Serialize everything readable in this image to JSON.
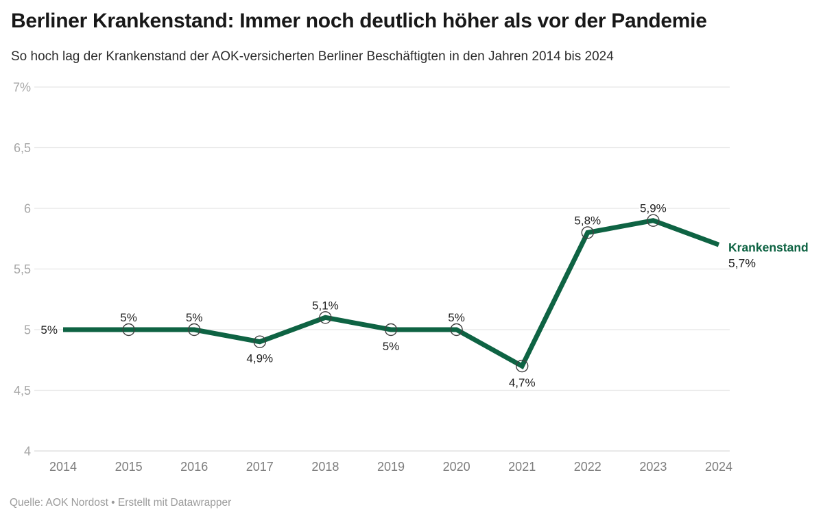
{
  "header": {
    "title": "Berliner Krankenstand: Immer noch deutlich höher als vor der Pandemie",
    "subtitle": "So hoch lag der Krankenstand der AOK-versicherten Berliner Beschäftigten in den Jahren 2014 bis 2024"
  },
  "chart_data": {
    "type": "line",
    "title": "Berliner Krankenstand: Immer noch deutlich höher als vor der Pandemie",
    "subtitle": "So hoch lag der Krankenstand der AOK-versicherten Berliner Beschäftigten in den Jahren 2014 bis 2024",
    "x": [
      "2014",
      "2015",
      "2016",
      "2017",
      "2018",
      "2019",
      "2020",
      "2021",
      "2022",
      "2023",
      "2024"
    ],
    "series": [
      {
        "name": "Krankenstand",
        "values": [
          5,
          5,
          5,
          4.9,
          5.1,
          5,
          5,
          4.7,
          5.8,
          5.9,
          5.7
        ]
      }
    ],
    "point_labels": [
      "5%",
      "5%",
      "5%",
      "4,9%",
      "5,1%",
      "5%",
      "5%",
      "4,7%",
      "5,8%",
      "5,9%",
      "5,7%"
    ],
    "label_positions": [
      "left",
      "above",
      "above",
      "below",
      "above",
      "below",
      "above",
      "below",
      "above",
      "above",
      "legend"
    ],
    "markers": [
      false,
      true,
      true,
      true,
      true,
      true,
      true,
      true,
      true,
      true,
      false
    ],
    "ylim": [
      4,
      7
    ],
    "y_ticks": [
      {
        "value": 7,
        "label": "7%"
      },
      {
        "value": 6.5,
        "label": "6,5"
      },
      {
        "value": 6,
        "label": "6"
      },
      {
        "value": 5.5,
        "label": "5,5"
      },
      {
        "value": 5,
        "label": "5"
      },
      {
        "value": 4.5,
        "label": "4,5"
      },
      {
        "value": 4,
        "label": "4"
      }
    ],
    "grid": true,
    "legend": {
      "position": "right-of-line-end",
      "label": "Krankenstand",
      "value_label": "5,7%"
    },
    "colors": {
      "line": "#0e6343",
      "grid": "#e5e5e5",
      "axis_bottom": "#d9d9d9",
      "y_tick": "#a6a6a6",
      "x_tick": "#7d7d7d",
      "point_label": "#1f1f1f",
      "marker_stroke": "#404040",
      "label_halo": "#ffffff"
    }
  },
  "footer": {
    "text": "Quelle: AOK Nordost • Erstellt mit Datawrapper"
  }
}
